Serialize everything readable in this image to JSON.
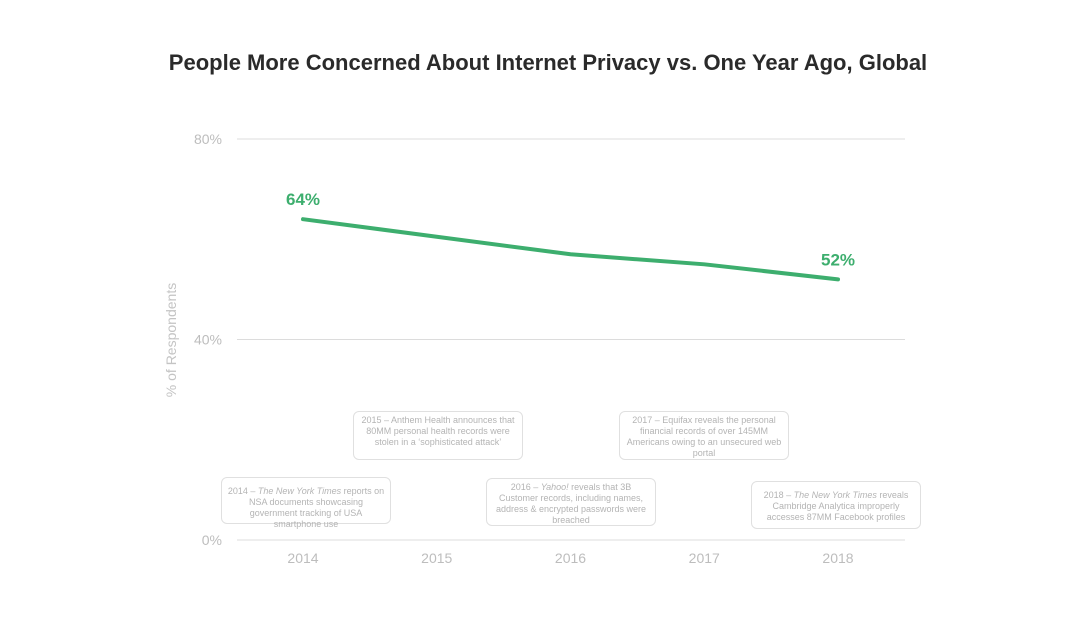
{
  "chart": {
    "title": "People More Concerned About Internet Privacy vs. One Year Ago, Global"
  },
  "chart_data": {
    "type": "line",
    "title": "People More Concerned About Internet Privacy vs. One Year Ago, Global",
    "ylabel": "% of Respondents",
    "xlabel": "",
    "ylim": [
      0,
      80
    ],
    "y_ticks": [
      {
        "value": 0,
        "label": "0%"
      },
      {
        "value": 40,
        "label": "40%"
      },
      {
        "value": 80,
        "label": "80%"
      }
    ],
    "x": [
      "2014",
      "2015",
      "2016",
      "2017",
      "2018"
    ],
    "series": [
      {
        "values": [
          64,
          60.5,
          57,
          55,
          52
        ],
        "color": "#3dae6e"
      }
    ],
    "data_labels": [
      {
        "index": 0,
        "text": "64%"
      },
      {
        "index": 4,
        "text": "52%"
      }
    ],
    "grid": true,
    "annotations": [
      {
        "id": "2014",
        "lead": "2014 – ",
        "em": "The New York Times",
        "rest": " reports on NSA documents showcasing government tracking of USA smartphone use"
      },
      {
        "id": "2015",
        "lead": "2015 – Anthem Health announces that 80MM personal health records were stolen in a ‘sophisticated attack’",
        "em": "",
        "rest": ""
      },
      {
        "id": "2016",
        "lead": "2016 – ",
        "em": "Yahoo!",
        "rest": " reveals that 3B Customer records, including names, address & encrypted passwords were breached"
      },
      {
        "id": "2017",
        "lead": "2017 – Equifax reveals the personal financial records of over 145MM Americans owing to an unsecured web portal",
        "em": "",
        "rest": ""
      },
      {
        "id": "2018",
        "lead": "2018 – ",
        "em": "The New York Times",
        "rest": " reveals Cambridge Analytica improperly accesses 87MM Facebook profiles"
      }
    ]
  }
}
